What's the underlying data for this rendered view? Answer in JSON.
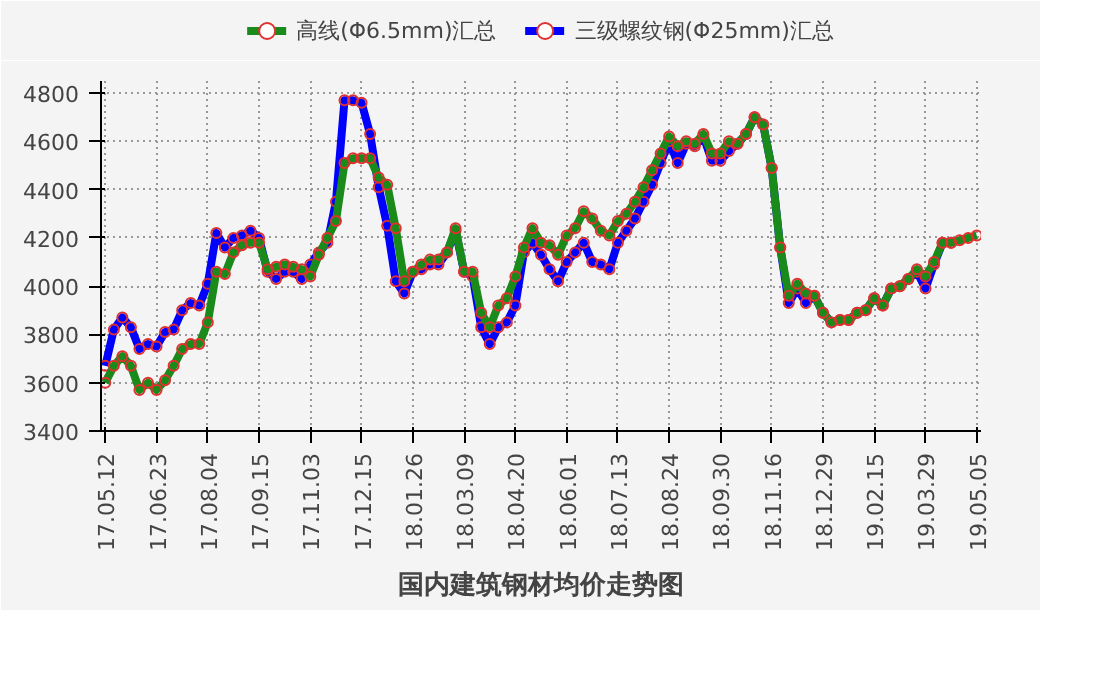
{
  "chart_data": {
    "type": "line",
    "title": "国内建筑钢材均价走势图",
    "categories": [
      "17.05.12",
      null,
      null,
      null,
      null,
      null,
      "17.06.23",
      null,
      null,
      null,
      null,
      null,
      "17.08.04",
      null,
      null,
      null,
      null,
      null,
      "17.09.15",
      null,
      null,
      null,
      null,
      null,
      "17.11.03",
      null,
      null,
      null,
      null,
      null,
      "17.12.15",
      null,
      null,
      null,
      null,
      null,
      "18.01.26",
      null,
      null,
      null,
      null,
      null,
      "18.03.09",
      null,
      null,
      null,
      null,
      null,
      "18.04.20",
      null,
      null,
      null,
      null,
      null,
      "18.06.01",
      null,
      null,
      null,
      null,
      null,
      "18.07.13",
      null,
      null,
      null,
      null,
      null,
      "18.08.24",
      null,
      null,
      null,
      null,
      null,
      "18.09.30",
      null,
      null,
      null,
      null,
      null,
      "18.11.16",
      null,
      null,
      null,
      null,
      null,
      "18.12.29",
      null,
      null,
      null,
      null,
      null,
      "19.02.15",
      null,
      null,
      null,
      null,
      null,
      "19.03.29",
      null,
      null,
      null,
      null,
      null,
      "19.05.05"
    ],
    "series": [
      {
        "name": "高线(Φ6.5mm)汇总",
        "color": "#1a8a1a",
        "values": [
          3600,
          3670,
          3710,
          3670,
          3570,
          3600,
          3570,
          3610,
          3670,
          3740,
          3760,
          3760,
          3850,
          4060,
          4050,
          4140,
          4170,
          4180,
          4180,
          4070,
          4080,
          4090,
          4080,
          4070,
          4040,
          4130,
          4200,
          4270,
          4510,
          4530,
          4530,
          4530,
          4450,
          4420,
          4240,
          4020,
          4060,
          4090,
          4110,
          4110,
          4140,
          4240,
          4060,
          4060,
          3890,
          3830,
          3920,
          3950,
          4040,
          4160,
          4240,
          4180,
          4170,
          4130,
          4210,
          4240,
          4310,
          4280,
          4230,
          4210,
          4270,
          4300,
          4350,
          4410,
          4480,
          4550,
          4620,
          4580,
          4600,
          4590,
          4630,
          4550,
          4550,
          4600,
          4590,
          4630,
          4700,
          4670,
          4490,
          4160,
          3960,
          4010,
          3970,
          3960,
          3890,
          3850,
          3860,
          3860,
          3890,
          3900,
          3950,
          3920,
          3990,
          4000,
          4030,
          4070,
          4040,
          4100,
          4180,
          4180,
          4190,
          4200,
          4210
        ]
      },
      {
        "name": "三级螺纹钢(Φ25mm)汇总",
        "color": "#0000ff",
        "values": [
          3670,
          3820,
          3870,
          3830,
          3740,
          3760,
          3750,
          3810,
          3820,
          3900,
          3930,
          3920,
          4010,
          4220,
          4160,
          4200,
          4210,
          4230,
          4200,
          4060,
          4030,
          4060,
          4060,
          4030,
          4090,
          4140,
          4180,
          4350,
          4770,
          4770,
          4760,
          4630,
          4410,
          4250,
          4020,
          3970,
          4060,
          4070,
          4090,
          4090,
          4140,
          4230,
          4060,
          4040,
          3830,
          3760,
          3830,
          3850,
          3920,
          4140,
          4180,
          4130,
          4070,
          4020,
          4100,
          4140,
          4180,
          4100,
          4090,
          4070,
          4180,
          4230,
          4280,
          4350,
          4420,
          4510,
          4600,
          4510,
          4590,
          4580,
          4620,
          4520,
          4520,
          4560,
          4590,
          4630,
          4700,
          4670,
          4490,
          4160,
          3930,
          3990,
          3930,
          3960,
          3890,
          3850,
          3860,
          3860,
          3890,
          3900,
          3950,
          3920,
          3990,
          4000,
          4030,
          4060,
          3990,
          4090,
          4180,
          4180,
          null,
          null,
          null
        ]
      }
    ],
    "ylim": [
      3400,
      4850
    ],
    "yticks": [
      3400,
      3600,
      3800,
      4000,
      4200,
      4400,
      4600,
      4800
    ],
    "grid": true,
    "legend": "top",
    "marker": "circle",
    "line_style": "solid"
  }
}
